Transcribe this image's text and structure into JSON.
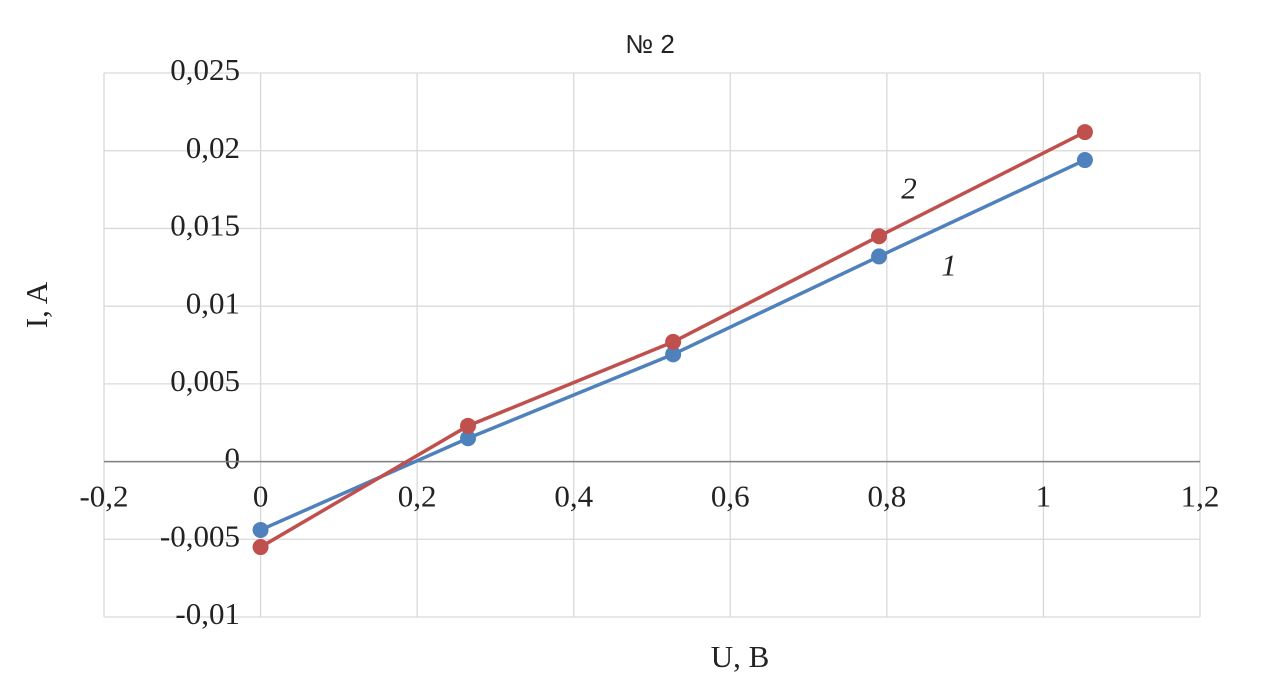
{
  "chart_data": {
    "type": "line",
    "title": "№ 2",
    "x_label": "U, B",
    "y_label": "I, A",
    "x": [
      0,
      0.265,
      0.527,
      0.79,
      1.053
    ],
    "series": [
      {
        "name": "1",
        "color": "#4f81bd",
        "values": [
          -0.0044,
          0.0015,
          0.0069,
          0.0132,
          0.0194
        ]
      },
      {
        "name": "2",
        "color": "#c0504d",
        "values": [
          -0.0055,
          0.0023,
          0.0077,
          0.0145,
          0.0212
        ]
      }
    ],
    "xlim": [
      -0.2,
      1.2
    ],
    "xticks": [
      {
        "value": -0.2,
        "label": "-0,2"
      },
      0,
      {
        "value": 0.2,
        "label": "0,2"
      },
      {
        "value": 0.4,
        "label": "0,4"
      },
      {
        "value": 0.6,
        "label": "0,6"
      },
      {
        "value": 0.8,
        "label": "0,8"
      },
      1,
      {
        "value": 1.2,
        "label": "1,2"
      }
    ],
    "ylim": [
      -0.01,
      0.025
    ],
    "yticks": [
      {
        "value": -0.01,
        "label": "-0,01"
      },
      {
        "value": -0.005,
        "label": "-0,005"
      },
      0,
      {
        "value": 0.005,
        "label": "0,005"
      },
      {
        "value": 0.01,
        "label": "0,01"
      },
      {
        "value": 0.015,
        "label": "0,015"
      },
      {
        "value": 0.02,
        "label": "0,02"
      },
      {
        "value": 0.025,
        "label": "0,025"
      }
    ],
    "grid": true
  }
}
